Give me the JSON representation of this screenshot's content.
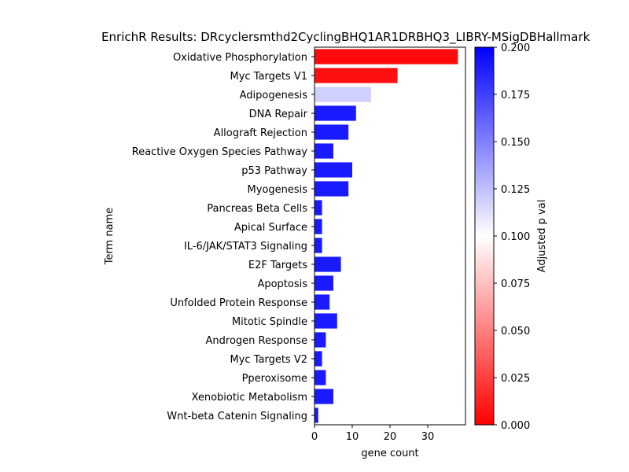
{
  "chart_data": {
    "type": "bar",
    "orientation": "horizontal",
    "title": "EnrichR Results: DRcyclersmthd2CyclingBHQ1AR1DRBHQ3_LIBRY-MSigDBHallmark",
    "xlabel": "gene count",
    "ylabel": "Term name",
    "xlim": [
      0,
      40
    ],
    "xticks": [
      0,
      10,
      20,
      30
    ],
    "categories": [
      "Oxidative Phosphorylation",
      "Myc Targets V1",
      "Adipogenesis",
      "DNA Repair",
      "Allograft Rejection",
      "Reactive Oxygen Species Pathway",
      "p53 Pathway",
      "Myogenesis",
      "Pancreas Beta Cells",
      "Apical Surface",
      "IL-6/JAK/STAT3 Signaling",
      "E2F Targets",
      "Apoptosis",
      "Unfolded Protein Response",
      "Mitotic Spindle",
      "Androgen Response",
      "Myc Targets V2",
      "Pperoxisome",
      "Xenobiotic Metabolism",
      "Wnt-beta Catenin Signaling"
    ],
    "values": [
      38,
      22,
      15,
      11,
      9,
      5,
      10,
      9,
      2,
      2,
      2,
      7,
      5,
      4,
      6,
      3,
      2,
      3,
      5,
      1
    ],
    "adjusted_p": [
      0.004,
      0.006,
      0.118,
      0.19,
      0.19,
      0.19,
      0.19,
      0.19,
      0.19,
      0.19,
      0.19,
      0.19,
      0.19,
      0.19,
      0.19,
      0.19,
      0.19,
      0.19,
      0.19,
      0.19
    ],
    "colorbar": {
      "label": "Adjusted p val",
      "range": [
        0,
        0.2
      ],
      "ticks": [
        "0.000",
        "0.025",
        "0.050",
        "0.075",
        "0.100",
        "0.125",
        "0.150",
        "0.175",
        "0.200"
      ],
      "colors": [
        "#ff0000",
        "#ffffff",
        "#0000ff"
      ]
    },
    "grid": false,
    "legend": "none"
  }
}
